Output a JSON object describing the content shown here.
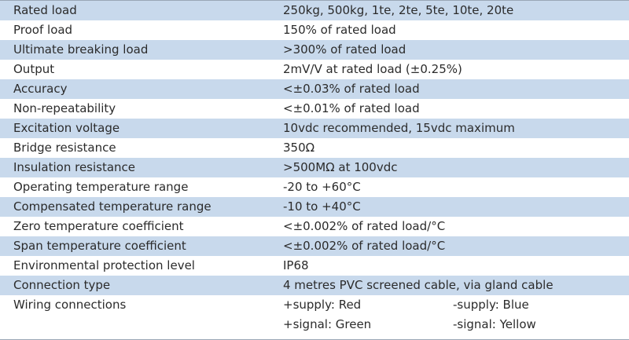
{
  "specs": [
    {
      "label": "Rated load",
      "value": "250kg, 500kg, 1te, 2te, 5te, 10te, 20te"
    },
    {
      "label": "Proof load",
      "value": "150% of rated load"
    },
    {
      "label": "Ultimate breaking load",
      "value": ">300% of rated load"
    },
    {
      "label": "Output",
      "value": "2mV/V at rated load (±0.25%)"
    },
    {
      "label": "Accuracy",
      "value": "<±0.03% of rated load"
    },
    {
      "label": "Non-repeatability",
      "value": "<±0.01% of rated load"
    },
    {
      "label": "Excitation voltage",
      "value": "10vdc recommended, 15vdc maximum"
    },
    {
      "label": "Bridge resistance",
      "value": "350Ω"
    },
    {
      "label": "Insulation resistance",
      "value": ">500MΩ at 100vdc"
    },
    {
      "label": "Operating temperature range",
      "value": "-20 to +60°C"
    },
    {
      "label": "Compensated temperature range",
      "value": "-10 to +40°C"
    },
    {
      "label": "Zero temperature coefficient",
      "value": "<±0.002% of rated load/°C"
    },
    {
      "label": "Span temperature coefficient",
      "value": "<±0.002% of rated load/°C"
    },
    {
      "label": "Environmental protection level",
      "value": "IP68"
    },
    {
      "label": "Connection type",
      "value": "4 metres PVC screened cable, via gland cable"
    }
  ],
  "wiring": {
    "label": "Wiring connections",
    "supply_pos": "+supply: Red",
    "supply_neg": "-supply: Blue",
    "signal_pos": "+signal: Green",
    "signal_neg": "-signal: Yellow"
  },
  "colors": {
    "stripe": "#c8d9ec",
    "text": "#2b2b2b"
  }
}
